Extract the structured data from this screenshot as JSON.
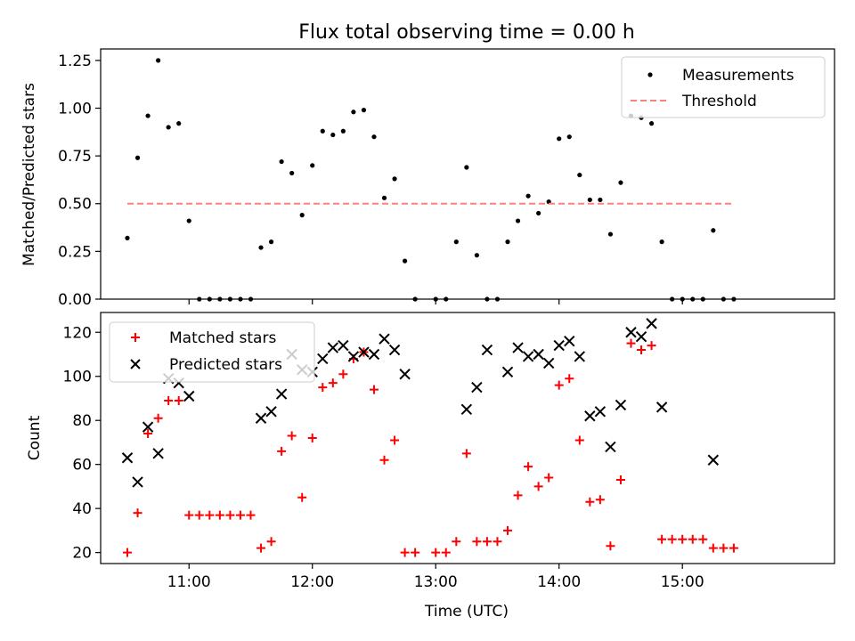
{
  "chart_data": [
    {
      "type": "scatter",
      "title": "Flux total observing time = 0.00 h",
      "xlabel": "",
      "ylabel": "Matched/Predicted stars",
      "xlim": [
        "10:17",
        "16:14"
      ],
      "ylim": [
        0,
        1.31
      ],
      "yticks": [
        "0.00",
        "0.25",
        "0.50",
        "0.75",
        "1.00",
        "1.25"
      ],
      "grid": false,
      "legend_placement": "top-right",
      "series": [
        {
          "name": "Measurements",
          "marker": "dot",
          "color": "#000000",
          "points": [
            [
              "10:30",
              0.32
            ],
            [
              "10:35",
              0.74
            ],
            [
              "10:40",
              0.96
            ],
            [
              "10:45",
              1.25
            ],
            [
              "10:50",
              0.9
            ],
            [
              "10:55",
              0.92
            ],
            [
              "11:00",
              0.41
            ],
            [
              "11:05",
              0.0
            ],
            [
              "11:10",
              0.0
            ],
            [
              "11:15",
              0.0
            ],
            [
              "11:20",
              0.0
            ],
            [
              "11:25",
              0.0
            ],
            [
              "11:30",
              0.0
            ],
            [
              "11:35",
              0.27
            ],
            [
              "11:40",
              0.3
            ],
            [
              "11:45",
              0.72
            ],
            [
              "11:50",
              0.66
            ],
            [
              "11:55",
              0.44
            ],
            [
              "12:00",
              0.7
            ],
            [
              "12:05",
              0.88
            ],
            [
              "12:10",
              0.86
            ],
            [
              "12:15",
              0.88
            ],
            [
              "12:20",
              0.98
            ],
            [
              "12:25",
              0.99
            ],
            [
              "12:30",
              0.85
            ],
            [
              "12:35",
              0.53
            ],
            [
              "12:40",
              0.63
            ],
            [
              "12:45",
              0.2
            ],
            [
              "12:50",
              0.0
            ],
            [
              "13:00",
              0.0
            ],
            [
              "13:05",
              0.0
            ],
            [
              "13:10",
              0.3
            ],
            [
              "13:15",
              0.69
            ],
            [
              "13:20",
              0.23
            ],
            [
              "13:25",
              0.0
            ],
            [
              "13:30",
              0.0
            ],
            [
              "13:35",
              0.3
            ],
            [
              "13:40",
              0.41
            ],
            [
              "13:45",
              0.54
            ],
            [
              "13:50",
              0.45
            ],
            [
              "13:55",
              0.51
            ],
            [
              "14:00",
              0.84
            ],
            [
              "14:05",
              0.85
            ],
            [
              "14:10",
              0.65
            ],
            [
              "14:15",
              0.52
            ],
            [
              "14:20",
              0.52
            ],
            [
              "14:25",
              0.34
            ],
            [
              "14:30",
              0.61
            ],
            [
              "14:35",
              0.96
            ],
            [
              "14:40",
              0.95
            ],
            [
              "14:45",
              0.92
            ],
            [
              "14:50",
              0.3
            ],
            [
              "14:55",
              0.0
            ],
            [
              "15:00",
              0.0
            ],
            [
              "15:05",
              0.0
            ],
            [
              "15:10",
              0.0
            ],
            [
              "15:15",
              0.36
            ],
            [
              "15:20",
              0.0
            ],
            [
              "15:25",
              0.0
            ]
          ]
        },
        {
          "name": "Threshold",
          "marker": "dashed-line",
          "color": "#ff7f7f",
          "points": [
            [
              "10:30",
              0.5
            ],
            [
              "15:25",
              0.5
            ]
          ]
        }
      ]
    },
    {
      "type": "scatter",
      "xlabel": "Time (UTC)",
      "ylabel": "Count",
      "xlim": [
        "10:17",
        "16:14"
      ],
      "xticks": [
        "11:00",
        "12:00",
        "13:00",
        "14:00",
        "15:00"
      ],
      "ylim": [
        15,
        129
      ],
      "yticks": [
        "20",
        "40",
        "60",
        "80",
        "100",
        "120"
      ],
      "grid": false,
      "legend_placement": "top-left",
      "series": [
        {
          "name": "Matched stars",
          "marker": "plus",
          "color": "#ff0000",
          "points": [
            [
              "10:30",
              20
            ],
            [
              "10:35",
              38
            ],
            [
              "10:40",
              74
            ],
            [
              "10:45",
              81
            ],
            [
              "10:50",
              89
            ],
            [
              "10:55",
              89
            ],
            [
              "11:00",
              37
            ],
            [
              "11:05",
              37
            ],
            [
              "11:10",
              37
            ],
            [
              "11:15",
              37
            ],
            [
              "11:20",
              37
            ],
            [
              "11:25",
              37
            ],
            [
              "11:30",
              37
            ],
            [
              "11:35",
              22
            ],
            [
              "11:40",
              25
            ],
            [
              "11:45",
              66
            ],
            [
              "11:50",
              73
            ],
            [
              "11:55",
              45
            ],
            [
              "12:00",
              72
            ],
            [
              "12:05",
              95
            ],
            [
              "12:10",
              97
            ],
            [
              "12:15",
              101
            ],
            [
              "12:20",
              108
            ],
            [
              "12:25",
              111
            ],
            [
              "12:30",
              94
            ],
            [
              "12:35",
              62
            ],
            [
              "12:40",
              71
            ],
            [
              "12:45",
              20
            ],
            [
              "12:50",
              20
            ],
            [
              "13:00",
              20
            ],
            [
              "13:05",
              20
            ],
            [
              "13:10",
              25
            ],
            [
              "13:15",
              65
            ],
            [
              "13:20",
              25
            ],
            [
              "13:25",
              25
            ],
            [
              "13:30",
              25
            ],
            [
              "13:35",
              30
            ],
            [
              "13:40",
              46
            ],
            [
              "13:45",
              59
            ],
            [
              "13:50",
              50
            ],
            [
              "13:55",
              54
            ],
            [
              "14:00",
              96
            ],
            [
              "14:05",
              99
            ],
            [
              "14:10",
              71
            ],
            [
              "14:15",
              43
            ],
            [
              "14:20",
              44
            ],
            [
              "14:25",
              23
            ],
            [
              "14:30",
              53
            ],
            [
              "14:35",
              115
            ],
            [
              "14:40",
              112
            ],
            [
              "14:45",
              114
            ],
            [
              "14:50",
              26
            ],
            [
              "14:55",
              26
            ],
            [
              "15:00",
              26
            ],
            [
              "15:05",
              26
            ],
            [
              "15:10",
              26
            ],
            [
              "15:15",
              22
            ],
            [
              "15:20",
              22
            ],
            [
              "15:25",
              22
            ]
          ]
        },
        {
          "name": "Predicted stars",
          "marker": "x",
          "color": "#000000",
          "points": [
            [
              "10:30",
              63
            ],
            [
              "10:35",
              52
            ],
            [
              "10:40",
              77
            ],
            [
              "10:45",
              65
            ],
            [
              "10:50",
              99
            ],
            [
              "10:55",
              97
            ],
            [
              "11:00",
              91
            ],
            [
              "11:35",
              81
            ],
            [
              "11:40",
              84
            ],
            [
              "11:45",
              92
            ],
            [
              "11:50",
              110
            ],
            [
              "11:55",
              103
            ],
            [
              "12:00",
              102
            ],
            [
              "12:05",
              108
            ],
            [
              "12:10",
              113
            ],
            [
              "12:15",
              114
            ],
            [
              "12:20",
              109
            ],
            [
              "12:25",
              111
            ],
            [
              "12:30",
              110
            ],
            [
              "12:35",
              117
            ],
            [
              "12:40",
              112
            ],
            [
              "12:45",
              101
            ],
            [
              "13:15",
              85
            ],
            [
              "13:20",
              95
            ],
            [
              "13:25",
              112
            ],
            [
              "13:35",
              102
            ],
            [
              "13:40",
              113
            ],
            [
              "13:45",
              109
            ],
            [
              "13:50",
              110
            ],
            [
              "13:55",
              106
            ],
            [
              "14:00",
              114
            ],
            [
              "14:05",
              116
            ],
            [
              "14:10",
              109
            ],
            [
              "14:15",
              82
            ],
            [
              "14:20",
              84
            ],
            [
              "14:25",
              68
            ],
            [
              "14:30",
              87
            ],
            [
              "14:35",
              120
            ],
            [
              "14:40",
              118
            ],
            [
              "14:45",
              124
            ],
            [
              "14:50",
              86
            ],
            [
              "15:15",
              62
            ]
          ]
        }
      ]
    }
  ]
}
